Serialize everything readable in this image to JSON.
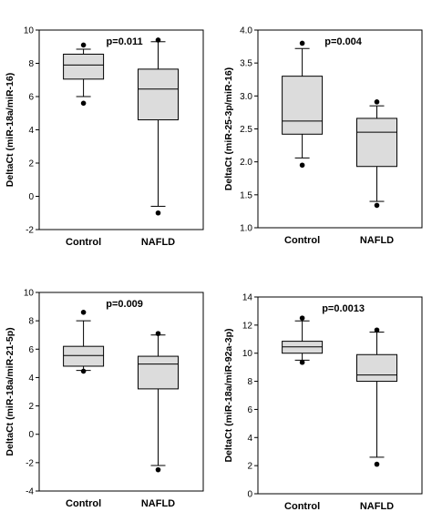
{
  "colors": {
    "box_fill": "#dcdcdc",
    "stroke": "#000000",
    "outlier": "#000000",
    "background": "#ffffff"
  },
  "chart_data": [
    {
      "type": "box",
      "ylabel": "DeltaCt (miR-18a/miR-16)",
      "annotation": "p=0.011",
      "categories": [
        "Control",
        "NAFLD"
      ],
      "ylim": [
        -2,
        10
      ],
      "yticks": [
        -2,
        0,
        2,
        4,
        6,
        8,
        10
      ],
      "tick_decimals": 0,
      "boxes": [
        {
          "category": "Control",
          "whisker_low": 6.0,
          "q1": 7.05,
          "median": 7.9,
          "q3": 8.55,
          "whisker_high": 8.85,
          "outliers": [
            5.6,
            9.1
          ]
        },
        {
          "category": "NAFLD",
          "whisker_low": -0.6,
          "q1": 4.6,
          "median": 6.45,
          "q3": 7.65,
          "whisker_high": 9.3,
          "outliers": [
            -1.0,
            9.4
          ]
        }
      ]
    },
    {
      "type": "box",
      "ylabel": "DeltaCt (miR-25-3p/miR-16)",
      "annotation": "p=0.004",
      "categories": [
        "Control",
        "NAFLD"
      ],
      "ylim": [
        1.0,
        4.0
      ],
      "yticks": [
        1.0,
        1.5,
        2.0,
        2.5,
        3.0,
        3.5,
        4.0
      ],
      "tick_decimals": 1,
      "boxes": [
        {
          "category": "Control",
          "whisker_low": 2.06,
          "q1": 2.42,
          "median": 2.62,
          "q3": 3.3,
          "whisker_high": 3.72,
          "outliers": [
            1.95,
            3.8
          ]
        },
        {
          "category": "NAFLD",
          "whisker_low": 1.4,
          "q1": 1.93,
          "median": 2.45,
          "q3": 2.66,
          "whisker_high": 2.85,
          "outliers": [
            1.34,
            2.91
          ]
        }
      ]
    },
    {
      "type": "box",
      "ylabel": "DeltaCt (miR-18a/miR-21-5p)",
      "annotation": "p=0.009",
      "categories": [
        "Control",
        "NAFLD"
      ],
      "ylim": [
        -4,
        10
      ],
      "yticks": [
        -4,
        -2,
        0,
        2,
        4,
        6,
        8,
        10
      ],
      "tick_decimals": 0,
      "boxes": [
        {
          "category": "Control",
          "whisker_low": 4.5,
          "q1": 4.8,
          "median": 5.55,
          "q3": 6.2,
          "whisker_high": 8.0,
          "outliers": [
            4.45,
            8.6
          ]
        },
        {
          "category": "NAFLD",
          "whisker_low": -2.2,
          "q1": 3.2,
          "median": 4.95,
          "q3": 5.5,
          "whisker_high": 7.0,
          "outliers": [
            -2.5,
            7.1
          ]
        }
      ]
    },
    {
      "type": "box",
      "ylabel": "DeltaCt (miR-18a/miR-92a-3p)",
      "annotation": "p=0.0013",
      "categories": [
        "Control",
        "NAFLD"
      ],
      "ylim": [
        0,
        14
      ],
      "yticks": [
        0,
        2,
        4,
        6,
        8,
        10,
        12,
        14
      ],
      "tick_decimals": 0,
      "boxes": [
        {
          "category": "Control",
          "whisker_low": 9.5,
          "q1": 10.0,
          "median": 10.45,
          "q3": 10.85,
          "whisker_high": 12.3,
          "outliers": [
            9.35,
            12.5
          ]
        },
        {
          "category": "NAFLD",
          "whisker_low": 2.6,
          "q1": 8.0,
          "median": 8.45,
          "q3": 9.9,
          "whisker_high": 11.5,
          "outliers": [
            2.1,
            11.65
          ]
        }
      ]
    }
  ]
}
